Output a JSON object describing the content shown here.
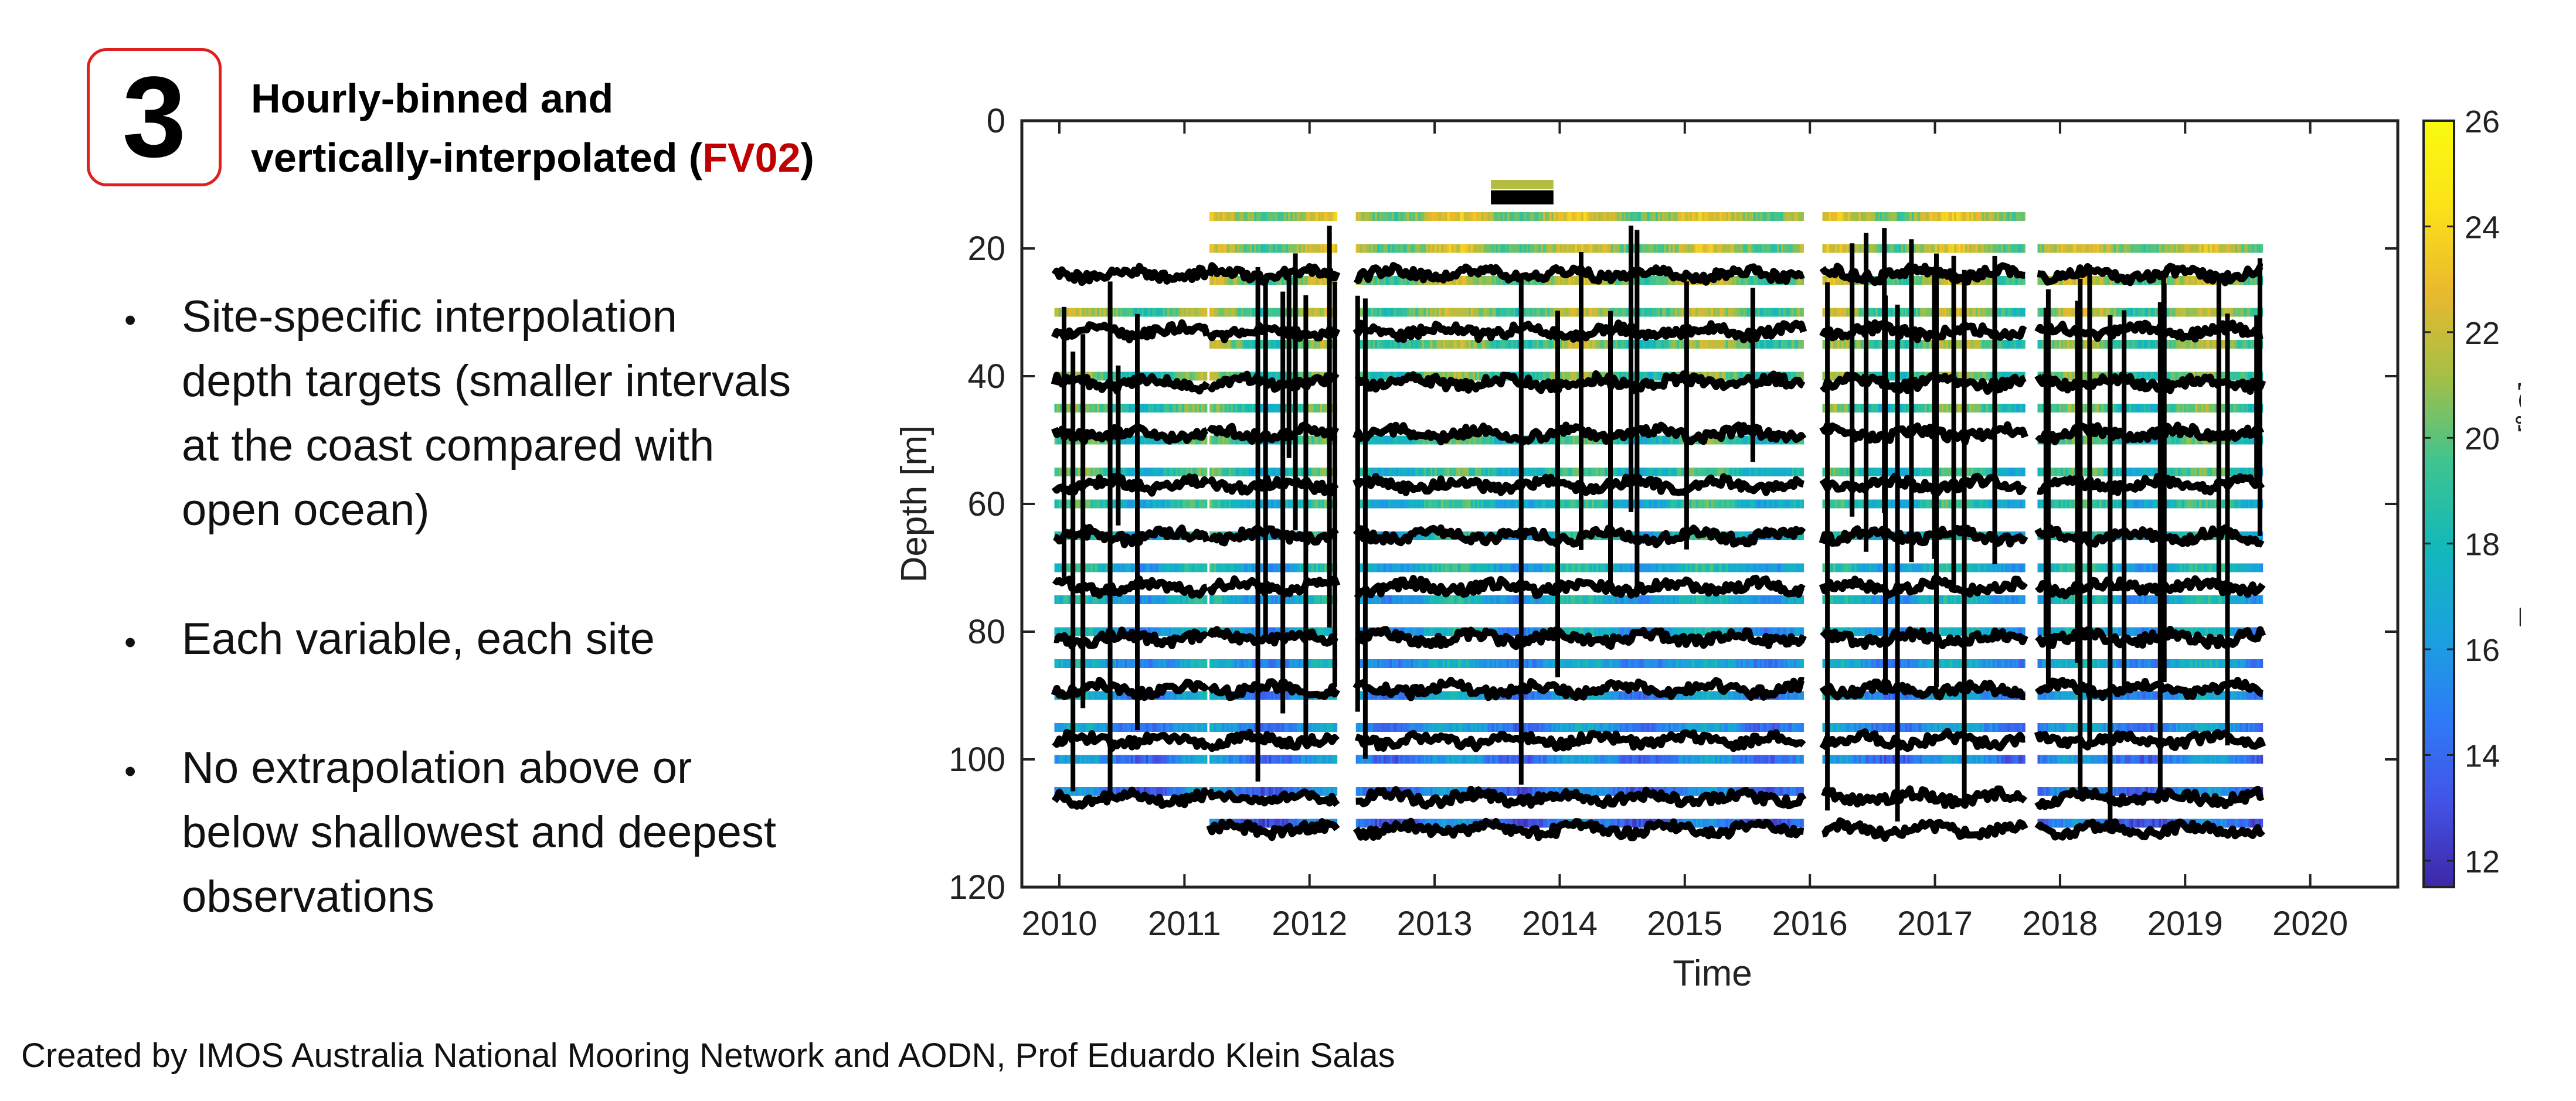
{
  "slide": {
    "step_number": "3",
    "heading": {
      "line1": "Hourly-binned and",
      "line2_pre": "vertically-interpolated (",
      "line2_code": "FV02",
      "line2_post": ")"
    },
    "bullets": [
      {
        "lines": [
          "Site-specific interpolation",
          "depth targets (smaller intervals",
          "at the coast compared with",
          "open ocean)"
        ]
      },
      {
        "lines": [
          "Each variable, each site"
        ]
      },
      {
        "lines": [
          "No extrapolation above or",
          "below shallowest and deepest",
          "observations"
        ]
      }
    ],
    "footer": "Created by IMOS Australia National Mooring Network and AODN, Prof Eduardo Klein Salas",
    "colors": {
      "accent_red": "#e02020",
      "code_red": "#c00000"
    }
  },
  "chart_data": {
    "type": "heatmap",
    "xlabel": "Time",
    "ylabel": "Depth [m]",
    "colorbar_label": "Temperature [˚C]",
    "xlim": [
      2009.7,
      2020.7
    ],
    "ylim": [
      120,
      0
    ],
    "x_ticks": [
      "2010",
      "2011",
      "2012",
      "2013",
      "2014",
      "2015",
      "2016",
      "2017",
      "2018",
      "2019",
      "2020"
    ],
    "y_ticks": [
      "0",
      "20",
      "40",
      "60",
      "80",
      "100",
      "120"
    ],
    "colorbar_ticks": [
      "12",
      "14",
      "16",
      "18",
      "20",
      "22",
      "24",
      "26"
    ],
    "colorbar_range": [
      11.5,
      26
    ],
    "colormap": [
      "#3e26a8",
      "#4353e6",
      "#2d7cf7",
      "#1aa2dd",
      "#13b8ba",
      "#3fc48f",
      "#a5bf45",
      "#eab92e",
      "#fbe219",
      "#f9fb0e"
    ],
    "grid": false,
    "deployments": [
      {
        "start": 2009.96,
        "end": 2011.18,
        "depth_min": 25,
        "depth_max": 105
      },
      {
        "start": 2011.2,
        "end": 2012.22,
        "depth_min": 15,
        "depth_max": 110
      },
      {
        "start": 2012.37,
        "end": 2015.95,
        "depth_min": 15,
        "depth_max": 110
      },
      {
        "start": 2016.1,
        "end": 2017.72,
        "depth_min": 15,
        "depth_max": 110
      },
      {
        "start": 2017.82,
        "end": 2019.62,
        "depth_min": 20,
        "depth_max": 110
      }
    ],
    "interpolation_depths": [
      15,
      20,
      25,
      30,
      35,
      40,
      45,
      50,
      55,
      60,
      65,
      70,
      75,
      80,
      85,
      90,
      95,
      100,
      105,
      110
    ],
    "observation_depths": [
      24,
      33,
      41,
      49,
      57,
      65,
      73,
      81,
      89,
      97,
      106,
      111
    ],
    "note_marks": {
      "shallow_cluster_depth": 10,
      "shallow_cluster_time": [
        2013.45,
        2013.95
      ]
    }
  }
}
